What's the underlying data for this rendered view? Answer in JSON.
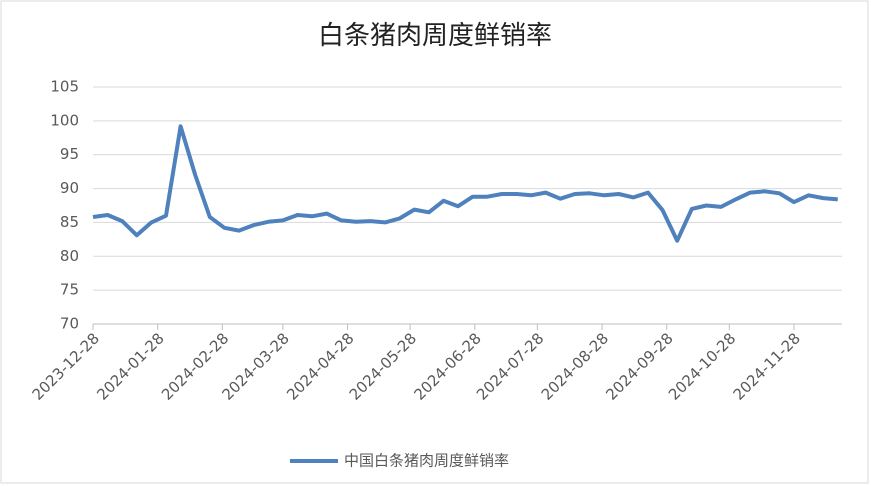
{
  "chart_data": {
    "type": "line",
    "title": "白条猪肉周度鲜销率",
    "x": [
      "2023-12-28",
      "2024-01-04",
      "2024-01-11",
      "2024-01-18",
      "2024-01-25",
      "2024-02-01",
      "2024-02-08",
      "2024-02-15",
      "2024-02-22",
      "2024-02-29",
      "2024-03-07",
      "2024-03-14",
      "2024-03-21",
      "2024-03-28",
      "2024-04-04",
      "2024-04-11",
      "2024-04-18",
      "2024-04-25",
      "2024-05-02",
      "2024-05-09",
      "2024-05-16",
      "2024-05-23",
      "2024-05-30",
      "2024-06-06",
      "2024-06-13",
      "2024-06-20",
      "2024-06-27",
      "2024-07-04",
      "2024-07-11",
      "2024-07-18",
      "2024-07-25",
      "2024-08-01",
      "2024-08-08",
      "2024-08-15",
      "2024-08-22",
      "2024-08-29",
      "2024-09-05",
      "2024-09-12",
      "2024-09-19",
      "2024-09-26",
      "2024-10-03",
      "2024-10-10",
      "2024-10-17",
      "2024-10-24",
      "2024-10-31",
      "2024-11-07",
      "2024-11-14",
      "2024-11-21",
      "2024-11-28",
      "2024-12-05",
      "2024-12-12",
      "2024-12-19"
    ],
    "series": [
      {
        "name": "中国白条猪肉周度鲜销率",
        "color": "#4f81bd",
        "values": [
          85.8,
          86.1,
          85.2,
          83.1,
          85.0,
          86.0,
          99.2,
          92.0,
          85.8,
          84.2,
          83.8,
          84.6,
          85.1,
          85.3,
          86.1,
          85.9,
          86.3,
          85.3,
          85.1,
          85.2,
          85.0,
          85.6,
          86.9,
          86.5,
          88.2,
          87.4,
          88.8,
          88.8,
          89.2,
          89.2,
          89.0,
          89.4,
          88.5,
          89.2,
          89.3,
          89.0,
          89.2,
          88.7,
          89.4,
          86.8,
          82.3,
          87.0,
          87.5,
          87.3,
          88.4,
          89.4,
          89.6,
          89.3,
          88.0,
          89.0,
          88.6,
          88.4
        ]
      }
    ],
    "xlim": [
      "2023-12-28",
      "2024-12-21"
    ],
    "xticks": [
      "2023-12-28",
      "2024-01-28",
      "2024-02-28",
      "2024-03-28",
      "2024-04-28",
      "2024-05-28",
      "2024-06-28",
      "2024-07-28",
      "2024-08-28",
      "2024-09-28",
      "2024-10-28",
      "2024-11-28"
    ],
    "ylim": [
      70,
      105
    ],
    "yticks": [
      70,
      75,
      80,
      85,
      90,
      95,
      100,
      105
    ],
    "grid": true,
    "legend": "bottom"
  }
}
